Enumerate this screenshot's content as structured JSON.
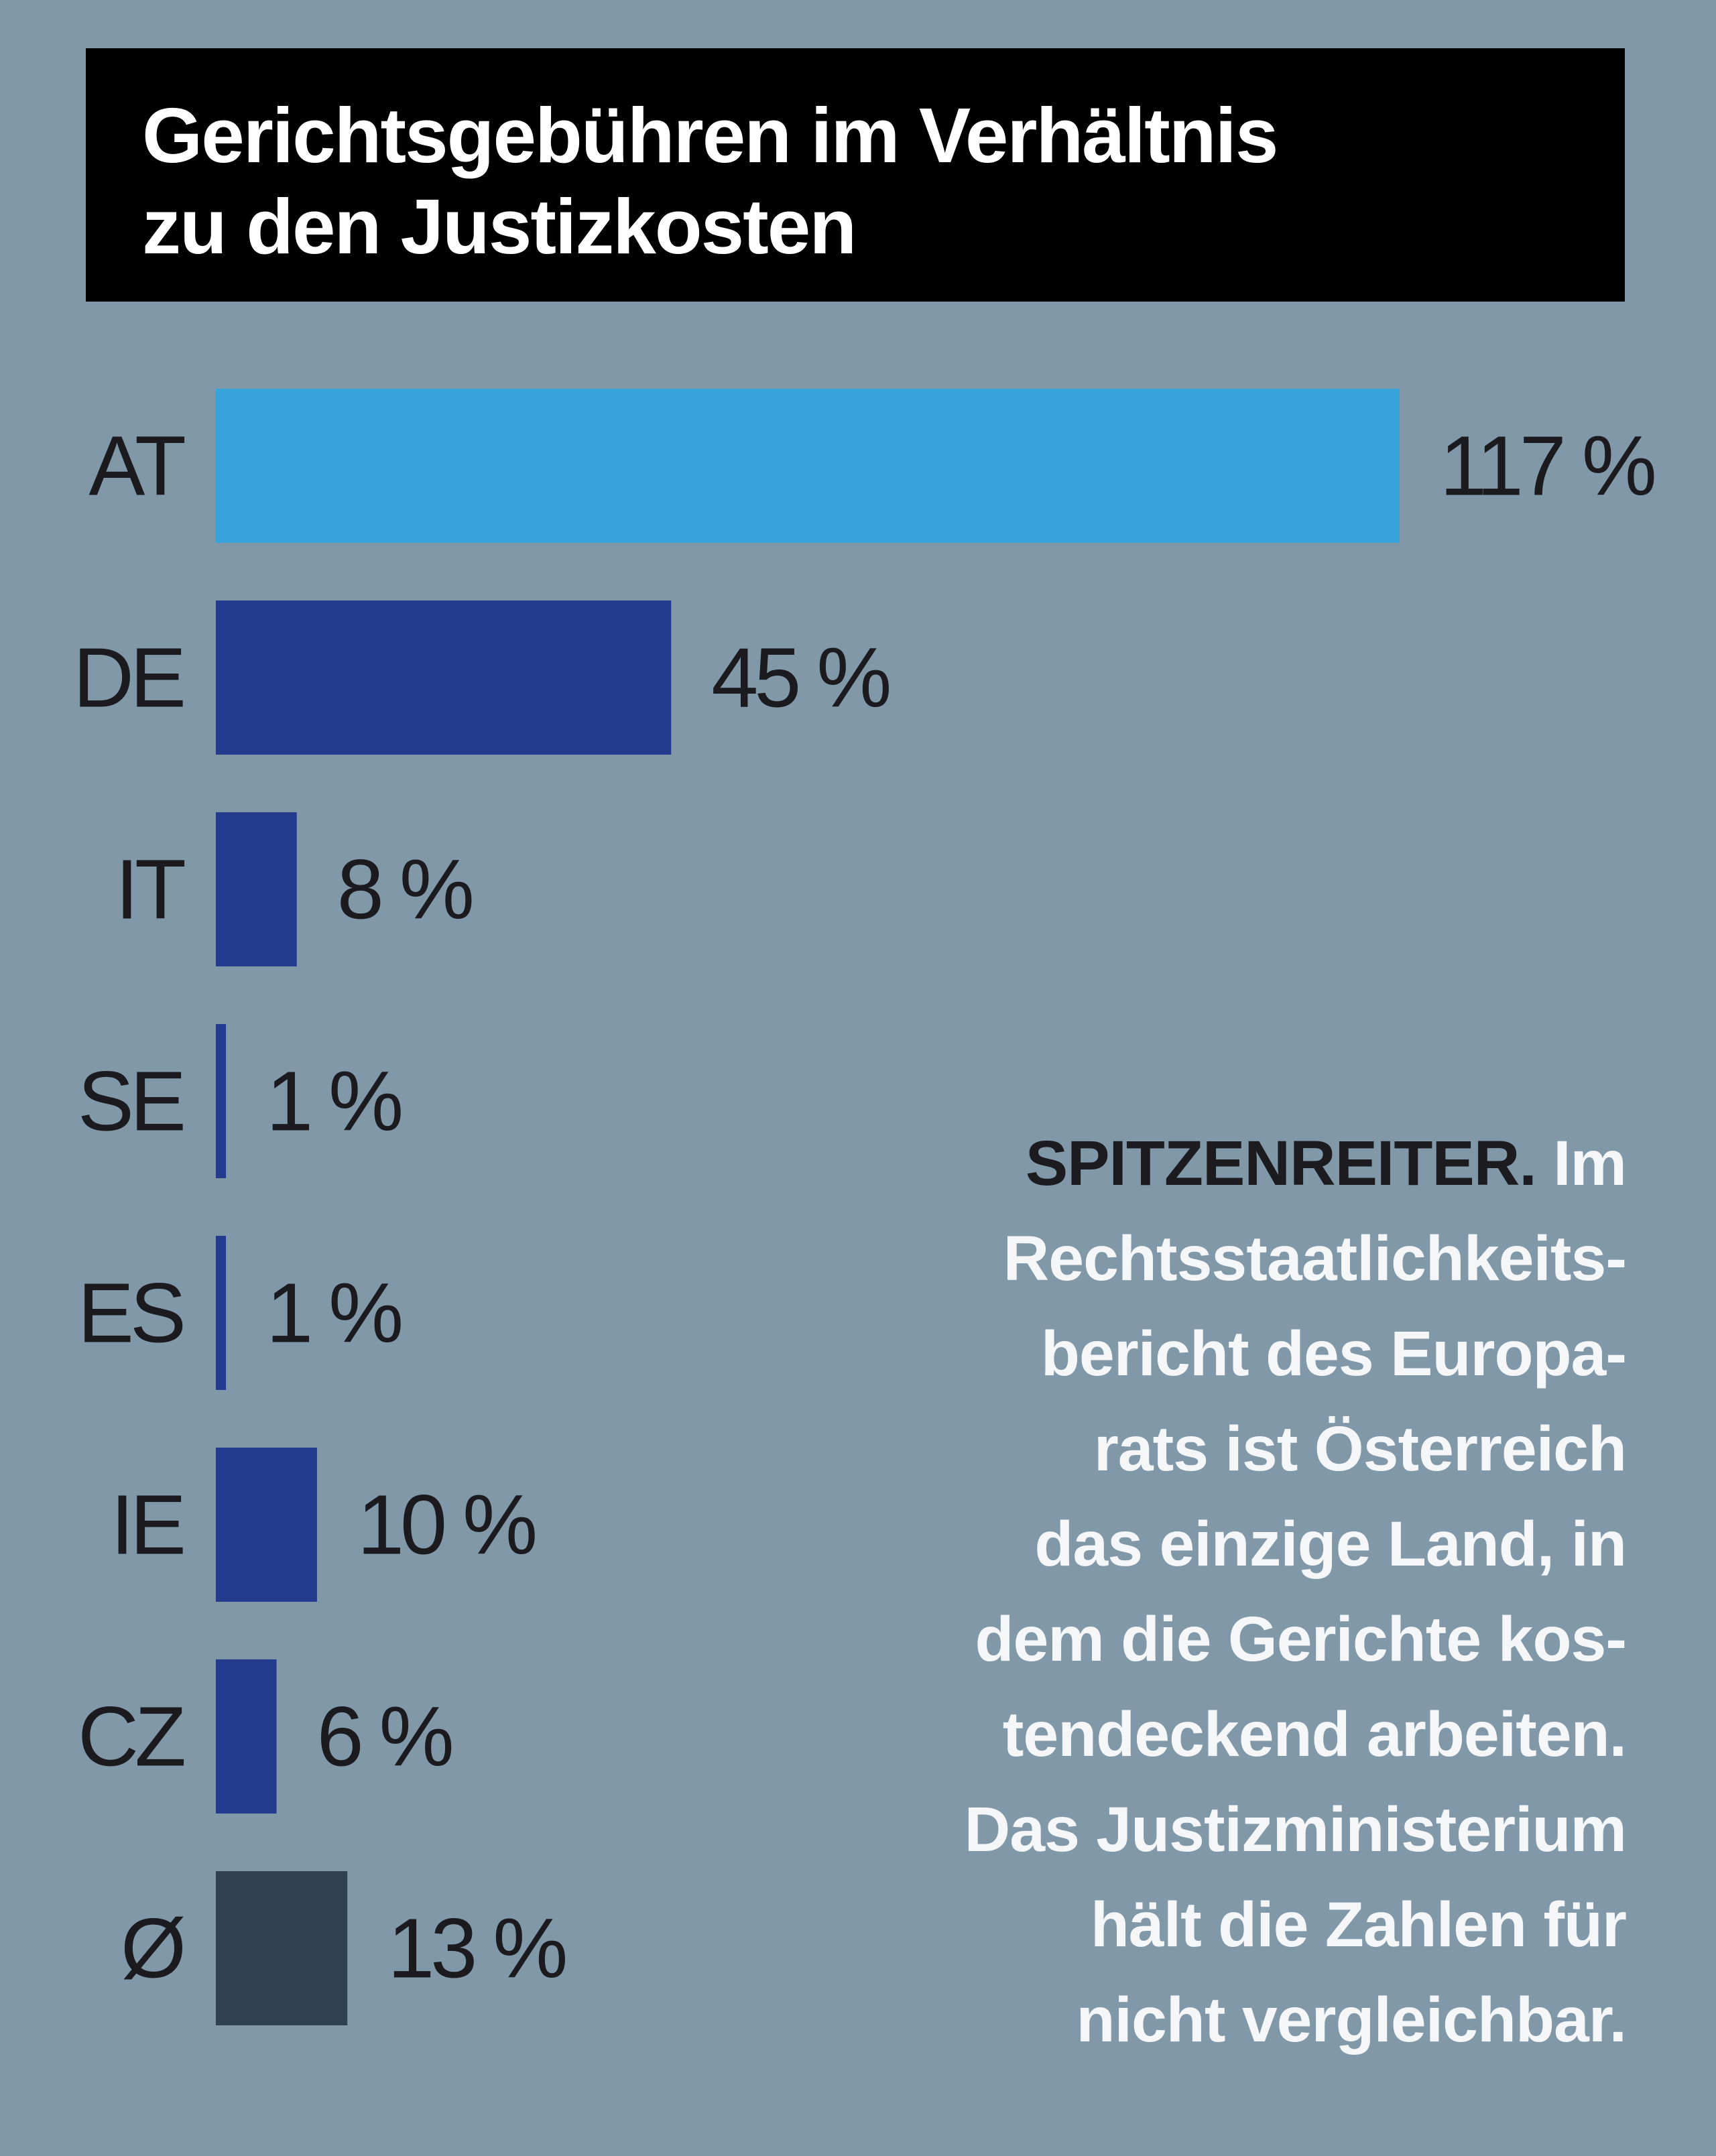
{
  "chart_data": {
    "type": "bar",
    "orientation": "horizontal",
    "title": "Gerichtsgebühren im Verhältnis zu den Justizkosten",
    "title_lines": [
      "Gerichtsgebühren im Verhältnis",
      "zu den Justizkosten"
    ],
    "categories": [
      "AT",
      "DE",
      "IT",
      "SE",
      "ES",
      "IE",
      "CZ",
      "Ø"
    ],
    "values": [
      117,
      45,
      8,
      1,
      1,
      10,
      6,
      13
    ],
    "value_labels": [
      "117 %",
      "45 %",
      "8 %",
      "1 %",
      "1 %",
      "10 %",
      "6 %",
      "13 %"
    ],
    "unit": "%",
    "colors": [
      "#36a3db",
      "#233b8c",
      "#233b8c",
      "#233b8c",
      "#233b8c",
      "#233b8c",
      "#233b8c",
      "#2f4051"
    ],
    "xlim": [
      0,
      117
    ],
    "xlabel": "",
    "ylabel": "",
    "grid": false
  },
  "annotation": {
    "lead": "SPITZENREITER.",
    "lines": [
      " Im",
      "Rechtsstaatlichkeits-",
      "bericht des Europa-",
      "rats ist Österreich",
      "das einzige Land, in",
      "dem die Gerichte kos-",
      "tendeckend arbeiten.",
      "Das Justizministerium",
      "hält die Zahlen für",
      "nicht vergleichbar."
    ]
  },
  "colors": {
    "background": "#8198a8",
    "title_background": "#000000",
    "title_text": "#ffffff",
    "label_text": "#1b1b1f",
    "annotation_text": "#f4f6f8",
    "annotation_lead": "#1c1c20"
  }
}
